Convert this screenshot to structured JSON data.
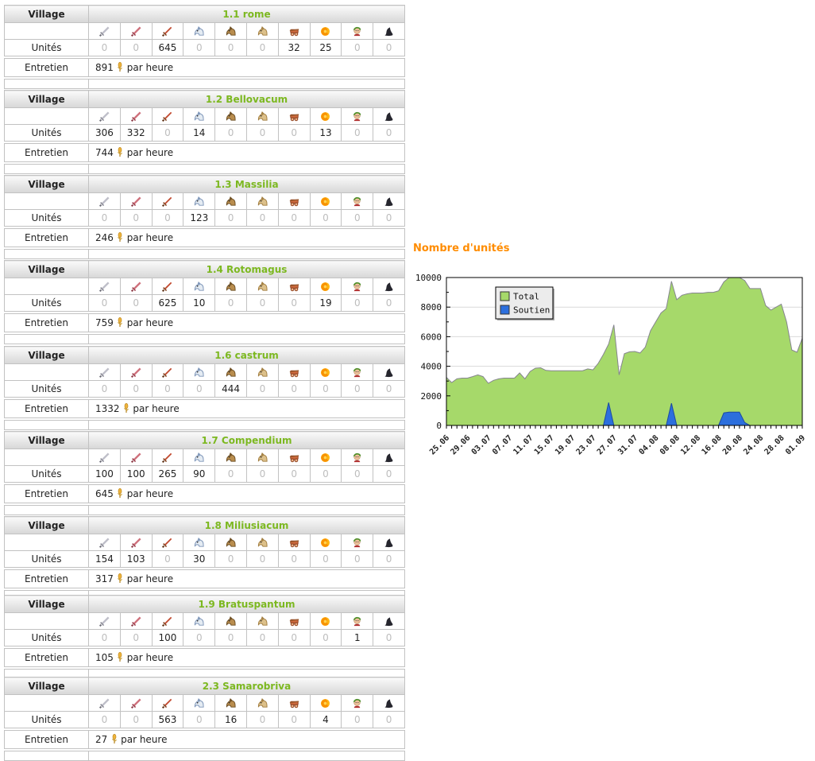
{
  "page": {
    "chart_title": "Nombre d'unités"
  },
  "labels": {
    "village": "Village",
    "units": "Unités",
    "upkeep": "Entretien",
    "per_hour": "par heure"
  },
  "unit_icon_names": [
    "legionnaire-sword-icon",
    "praetorian-sword-icon",
    "imperian-sword-icon",
    "equites-legati-horse-icon",
    "equites-imperatoris-horse-icon",
    "equites-caesaris-horse-icon",
    "battering-ram-icon",
    "fire-catapult-icon",
    "senator-icon",
    "settler-icon"
  ],
  "colors": {
    "village_link": "#7cb820",
    "chart_title": "#ff8c00",
    "total_fill": "#a6d96a",
    "total_stroke": "#85858f",
    "soutien_fill": "#2c6fdd",
    "soutien_stroke": "#1c4aa0",
    "grid": "#d9d9d9",
    "zero_value": "#bdbdbd"
  },
  "villages": [
    {
      "name": "1.1 rome",
      "units": [
        0,
        0,
        645,
        0,
        0,
        0,
        32,
        25,
        0,
        0
      ],
      "upkeep": "891"
    },
    {
      "name": "1.2 Bellovacum",
      "units": [
        306,
        332,
        0,
        14,
        0,
        0,
        0,
        13,
        0,
        0
      ],
      "upkeep": "744"
    },
    {
      "name": "1.3 Massilia",
      "units": [
        0,
        0,
        0,
        123,
        0,
        0,
        0,
        0,
        0,
        0
      ],
      "upkeep": "246"
    },
    {
      "name": "1.4 Rotomagus",
      "units": [
        0,
        0,
        625,
        10,
        0,
        0,
        0,
        19,
        0,
        0
      ],
      "upkeep": "759"
    },
    {
      "name": "1.6 castrum",
      "units": [
        0,
        0,
        0,
        0,
        444,
        0,
        0,
        0,
        0,
        0
      ],
      "upkeep": "1332"
    },
    {
      "name": "1.7 Compendium",
      "units": [
        100,
        100,
        265,
        90,
        0,
        0,
        0,
        0,
        0,
        0
      ],
      "upkeep": "645"
    },
    {
      "name": "1.8 Miliusiacum",
      "units": [
        154,
        103,
        0,
        30,
        0,
        0,
        0,
        0,
        0,
        0
      ],
      "upkeep": "317"
    },
    {
      "name": "1.9 Bratuspantum",
      "units": [
        0,
        0,
        100,
        0,
        0,
        0,
        0,
        0,
        1,
        0
      ],
      "upkeep": "105"
    },
    {
      "name": "2.3 Samarobriva",
      "units": [
        0,
        0,
        563,
        0,
        16,
        0,
        0,
        4,
        0,
        0
      ],
      "upkeep": "27"
    }
  ],
  "chart_data": {
    "type": "area",
    "title": "Nombre d'unités",
    "ylim": [
      0,
      10000
    ],
    "yticks": [
      0,
      2000,
      4000,
      6000,
      8000,
      10000
    ],
    "grid": true,
    "legend_position": "top-left",
    "x_tick_labels": [
      "25.06",
      "29.06",
      "03.07",
      "07.07",
      "11.07",
      "15.07",
      "19.07",
      "23.07",
      "27.07",
      "31.07",
      "04.08",
      "08.08",
      "12.08",
      "16.08",
      "20.08",
      "24.08",
      "28.08",
      "01.09"
    ],
    "x_label_every_days": 4,
    "series": [
      {
        "name": "Total",
        "values": [
          3250,
          2900,
          3150,
          3200,
          3200,
          3300,
          3420,
          3300,
          2850,
          3050,
          3150,
          3200,
          3200,
          3200,
          3550,
          3150,
          3650,
          3870,
          3900,
          3720,
          3700,
          3700,
          3700,
          3700,
          3700,
          3700,
          3700,
          3820,
          3760,
          4200,
          4800,
          5500,
          6800,
          3420,
          4850,
          4980,
          5000,
          4900,
          5300,
          6400,
          7000,
          7600,
          7900,
          9750,
          8500,
          8800,
          8900,
          8950,
          8950,
          8950,
          9000,
          9000,
          9100,
          9700,
          10050,
          10050,
          10050,
          9800,
          9250,
          9250,
          9250,
          8100,
          7800,
          8000,
          8200,
          7000,
          5100,
          4950,
          5900
        ]
      },
      {
        "name": "Soutien",
        "values": [
          0,
          0,
          0,
          0,
          0,
          0,
          0,
          0,
          0,
          0,
          0,
          0,
          0,
          0,
          0,
          0,
          0,
          0,
          0,
          0,
          0,
          0,
          0,
          0,
          0,
          0,
          0,
          0,
          0,
          0,
          0,
          1550,
          0,
          0,
          0,
          0,
          0,
          0,
          0,
          0,
          0,
          0,
          0,
          1500,
          0,
          0,
          0,
          0,
          0,
          0,
          0,
          0,
          0,
          850,
          900,
          900,
          900,
          200,
          0,
          0,
          0,
          0,
          0,
          0,
          0,
          0,
          0,
          0,
          0
        ]
      }
    ]
  }
}
